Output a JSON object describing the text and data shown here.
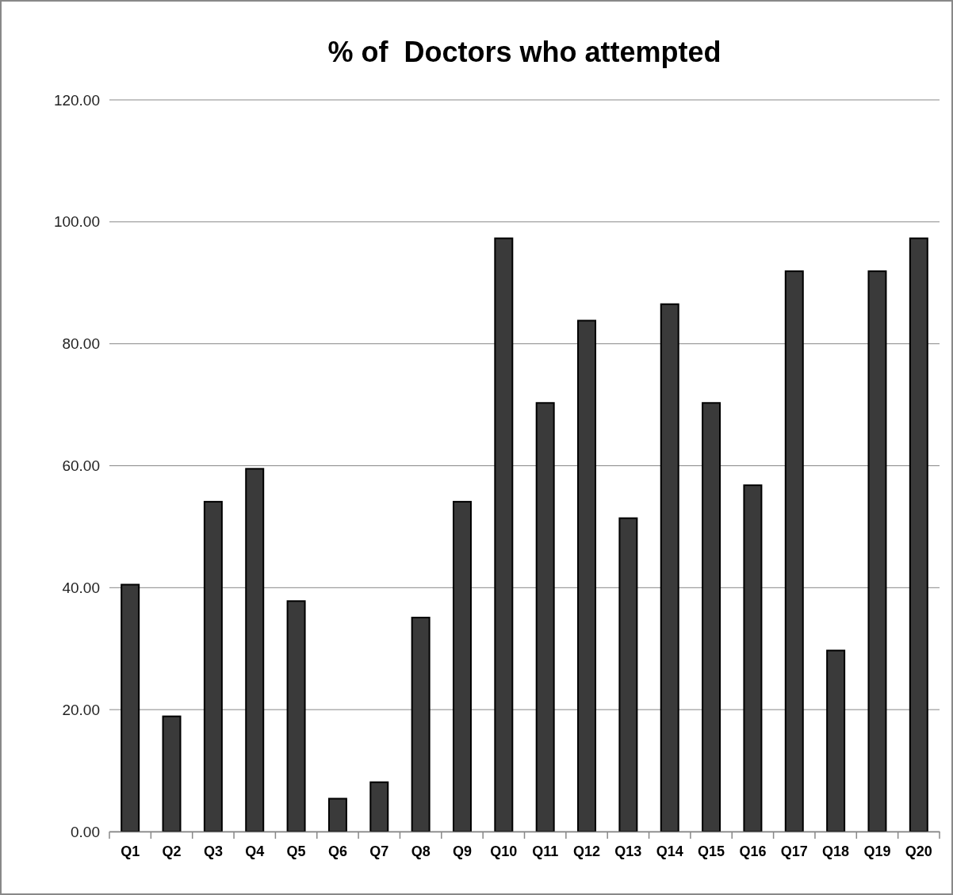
{
  "chart_data": {
    "type": "bar",
    "title": "% of  Doctors who attempted",
    "categories": [
      "Q1",
      "Q2",
      "Q3",
      "Q4",
      "Q5",
      "Q6",
      "Q7",
      "Q8",
      "Q9",
      "Q10",
      "Q11",
      "Q12",
      "Q13",
      "Q14",
      "Q15",
      "Q16",
      "Q17",
      "Q18",
      "Q19",
      "Q20"
    ],
    "values": [
      40.5,
      18.9,
      54.1,
      59.5,
      37.8,
      5.4,
      8.1,
      35.1,
      54.1,
      97.3,
      70.3,
      83.8,
      51.4,
      86.5,
      70.3,
      56.8,
      91.9,
      29.7,
      91.9,
      97.3
    ],
    "color": "#3a3a3a",
    "ylim": [
      0,
      120
    ],
    "yticks": [
      {
        "value": 0,
        "label": "0.00"
      },
      {
        "value": 20,
        "label": "20.00"
      },
      {
        "value": 40,
        "label": "40.00"
      },
      {
        "value": 60,
        "label": "60.00"
      },
      {
        "value": 80,
        "label": "80.00"
      },
      {
        "value": 100,
        "label": "100.00"
      },
      {
        "value": 120,
        "label": "120.00"
      }
    ],
    "grid": "y"
  }
}
